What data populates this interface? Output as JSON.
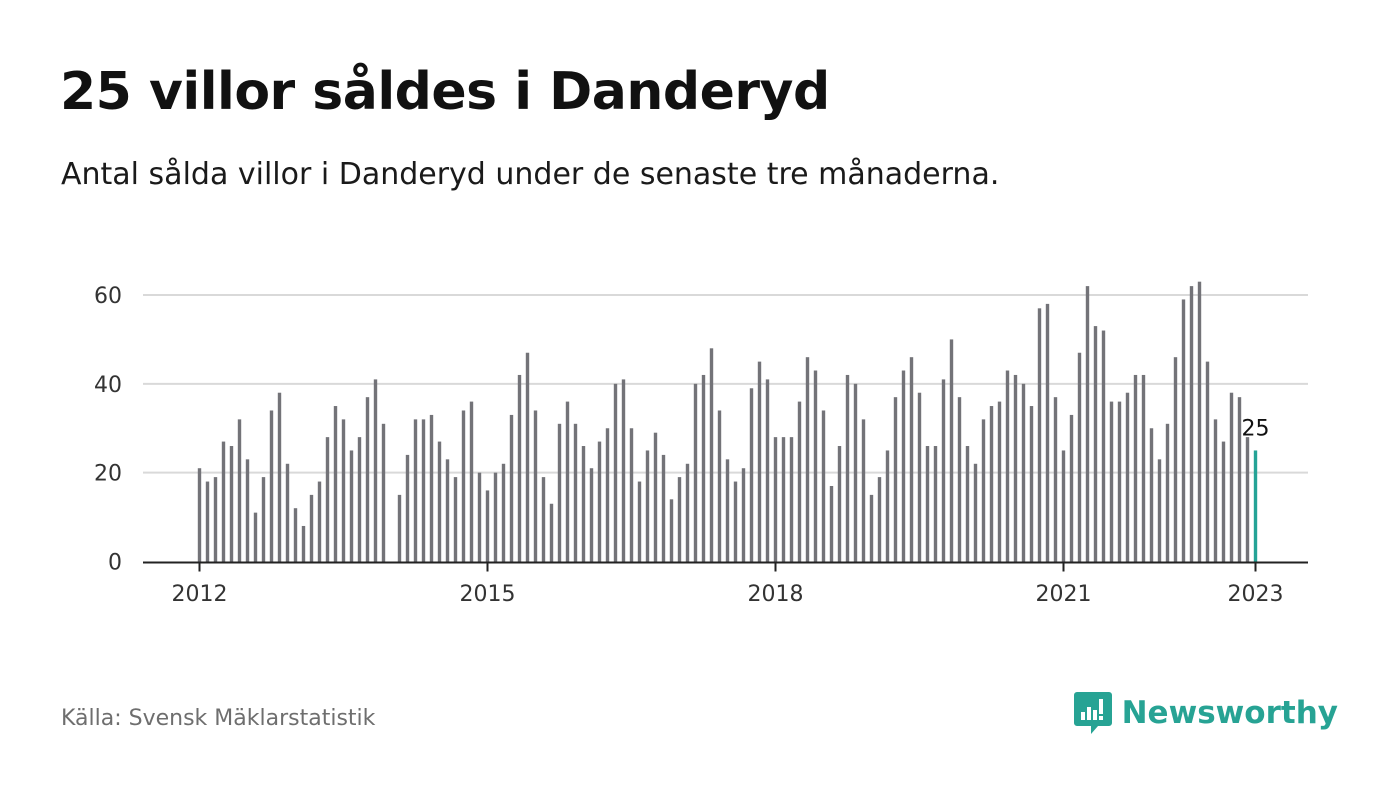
{
  "header": {
    "title": "25 villor såldes i Danderyd",
    "subtitle": "Antal sålda villor i Danderyd under de senaste tre månaderna."
  },
  "footer": {
    "source": "Källa: Svensk Mäklarstatistik",
    "brand": "Newsworthy"
  },
  "colors": {
    "bar": "#737378",
    "highlight": "#25a396",
    "grid": "#d9d9d9",
    "axis": "#222222",
    "brand": "#27a394"
  },
  "chart_data": {
    "type": "bar",
    "title": "",
    "xlabel": "",
    "ylabel": "",
    "ylim": [
      0,
      60
    ],
    "yticks": [
      "0",
      "20",
      "40",
      "60"
    ],
    "xticks": [
      {
        "label": "2012",
        "index": 0
      },
      {
        "label": "2015",
        "index": 36
      },
      {
        "label": "2018",
        "index": 72
      },
      {
        "label": "2021",
        "index": 108
      },
      {
        "label": "2023",
        "index": 132
      }
    ],
    "grid": true,
    "highlight_index": 132,
    "highlight_label": "25",
    "series": [
      {
        "values": [
          21,
          18,
          19,
          27,
          26,
          32,
          23,
          11,
          19,
          34,
          38,
          22,
          12,
          8,
          15,
          18,
          28,
          35,
          32,
          25,
          28,
          37,
          41,
          31,
          null,
          15,
          24,
          32,
          32,
          33,
          27,
          23,
          19,
          34,
          36,
          20,
          16,
          20,
          22,
          33,
          42,
          47,
          34,
          19,
          13,
          31,
          36,
          31,
          26,
          21,
          27,
          30,
          40,
          41,
          30,
          18,
          25,
          29,
          24,
          14,
          19,
          22,
          40,
          42,
          48,
          34,
          23,
          18,
          21,
          39,
          45,
          41,
          28,
          28,
          28,
          36,
          46,
          43,
          34,
          17,
          26,
          42,
          40,
          32,
          15,
          19,
          25,
          37,
          43,
          46,
          38,
          26,
          26,
          41,
          50,
          37,
          26,
          22,
          32,
          35,
          36,
          43,
          42,
          40,
          35,
          57,
          58,
          37,
          25,
          33,
          47,
          62,
          53,
          52,
          36,
          36,
          38,
          42,
          42,
          30,
          23,
          31,
          46,
          59,
          62,
          63,
          45,
          32,
          27,
          38,
          37,
          28,
          25
        ]
      }
    ]
  }
}
